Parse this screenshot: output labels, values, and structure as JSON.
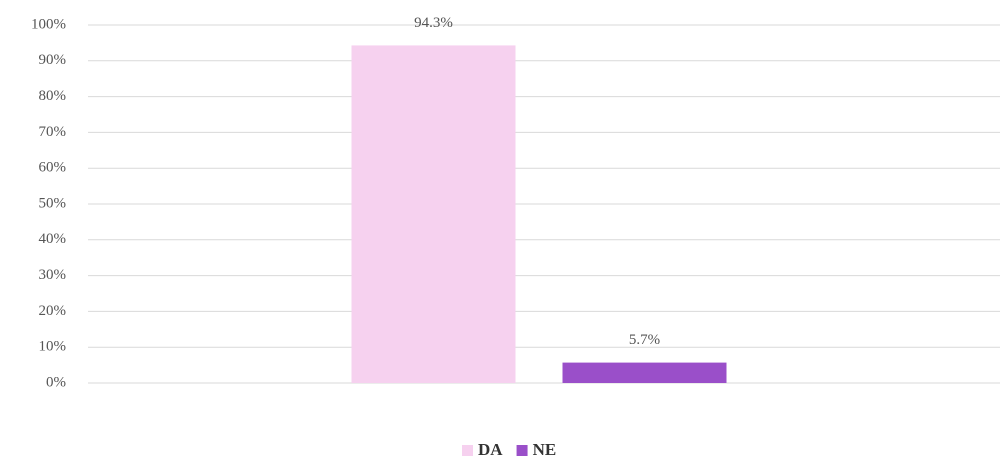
{
  "chart_data": {
    "type": "bar",
    "categories": [
      null
    ],
    "series": [
      {
        "name": "DA",
        "color": "#f6d1ef",
        "values": [
          94.3
        ],
        "value_labels": [
          "94.3%"
        ]
      },
      {
        "name": "NE",
        "color": "#9a4fc9",
        "values": [
          5.7
        ],
        "value_labels": [
          "5.7%"
        ]
      }
    ],
    "ylim": [
      0,
      100
    ],
    "yticks": [
      {
        "value": 0,
        "label": "0%"
      },
      {
        "value": 10,
        "label": "10%"
      },
      {
        "value": 20,
        "label": "20%"
      },
      {
        "value": 30,
        "label": "30%"
      },
      {
        "value": 40,
        "label": "40%"
      },
      {
        "value": 50,
        "label": "50%"
      },
      {
        "value": 60,
        "label": "60%"
      },
      {
        "value": 70,
        "label": "70%"
      },
      {
        "value": 80,
        "label": "80%"
      },
      {
        "value": 90,
        "label": "90%"
      },
      {
        "value": 100,
        "label": "100%"
      }
    ],
    "grid": true,
    "legend": "bottom"
  }
}
